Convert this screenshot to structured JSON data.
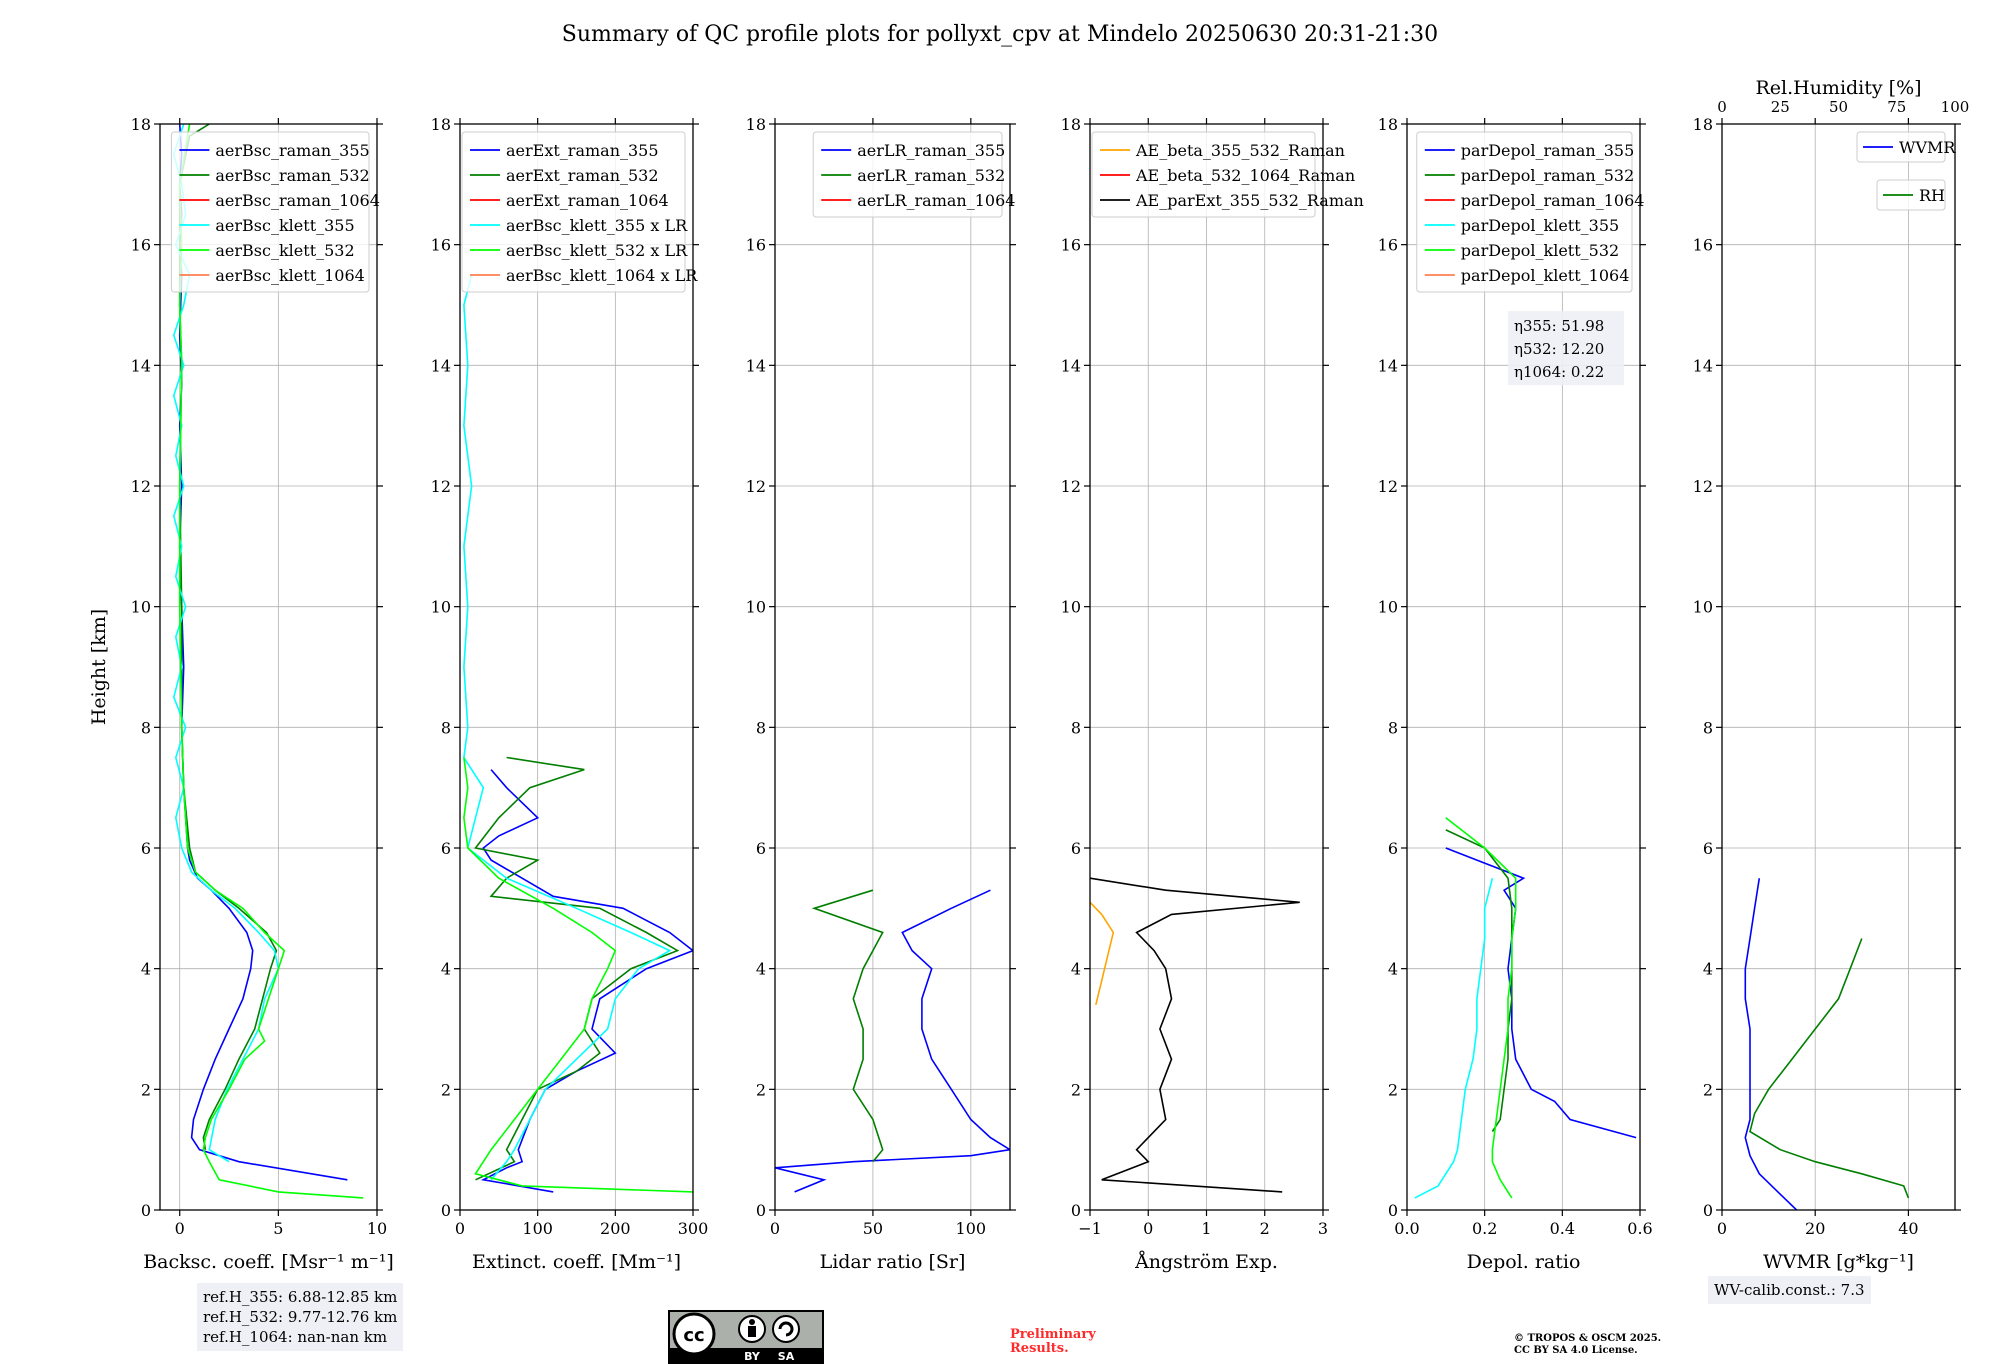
{
  "title": "Summary of QC profile plots for pollyxt_cpv at Mindelo 20250630 20:31-21:30",
  "info": {
    "ref_lines": [
      "ref.H_355: 6.88-12.85 km",
      "ref.H_532: 9.77-12.76 km",
      "ref.H_1064: nan-nan km"
    ],
    "wv_calib": "WV-calib.const.: 7.3",
    "preliminary": [
      "Preliminary",
      "Results."
    ],
    "copyright": [
      "© TROPOS & OSCM 2025.",
      "CC BY SA 4.0 License."
    ],
    "license_badge": [
      "BY",
      "SA"
    ]
  },
  "colors": {
    "blue": "#0000ff",
    "green": "#007f00",
    "red": "#ff0000",
    "cyan": "#00ffff",
    "lime": "#00ff00",
    "salmon": "#ff7f50",
    "orange": "#ffa500",
    "magenta": "#ff00ff",
    "black": "#000000"
  },
  "chart_data": [
    {
      "type": "line",
      "xlabel": "Backsc. coeff. [Msr⁻¹ m⁻¹]",
      "ylabel": "Height [km]",
      "xlim": [
        -1,
        10
      ],
      "ylim": [
        0,
        18
      ],
      "xticks": [
        "0",
        "5",
        "10"
      ],
      "yticks": [
        "0",
        "2",
        "4",
        "6",
        "8",
        "10",
        "12",
        "14",
        "16",
        "18"
      ],
      "grid": true,
      "legend": "top-right",
      "legend_entries": [
        "aerBsc_raman_355",
        "aerBsc_raman_532",
        "aerBsc_raman_1064",
        "aerBsc_klett_355",
        "aerBsc_klett_532",
        "aerBsc_klett_1064"
      ],
      "series": [
        {
          "name": "aerBsc_raman_355",
          "color": "blue",
          "h": [
            0.5,
            0.8,
            1.0,
            1.2,
            1.5,
            2.0,
            2.5,
            3.0,
            3.5,
            4.0,
            4.3,
            4.6,
            5.0,
            5.3,
            5.5,
            5.8,
            6.0,
            7.0,
            8.0,
            9.0,
            10.0,
            11.0,
            12.0,
            13.0,
            13.7,
            14.5,
            15.5,
            16.0,
            16.5,
            17.0,
            17.5,
            18.0
          ],
          "v": [
            8.5,
            3.0,
            1.0,
            0.6,
            0.7,
            1.2,
            1.8,
            2.5,
            3.2,
            3.6,
            3.7,
            3.4,
            2.5,
            1.6,
            0.9,
            0.5,
            0.4,
            0.2,
            0.1,
            0.2,
            0.1,
            0.0,
            0.1,
            0.0,
            0.1,
            0.0,
            0.1,
            0.0,
            0.1,
            0.0,
            0.1,
            0.0
          ]
        },
        {
          "name": "aerBsc_raman_532",
          "color": "green",
          "h": [
            1.0,
            1.2,
            1.5,
            2.0,
            2.5,
            3.0,
            3.5,
            4.0,
            4.3,
            4.6,
            5.0,
            5.3,
            5.6,
            6.0,
            7.0,
            8.0,
            10.0,
            12.0,
            14.0,
            15.0,
            16.0,
            17.0,
            17.8,
            18.0
          ],
          "v": [
            1.3,
            1.2,
            1.5,
            2.3,
            3.0,
            3.8,
            4.2,
            4.6,
            4.9,
            4.4,
            3.0,
            1.8,
            0.8,
            0.5,
            0.2,
            0.1,
            0.1,
            0.0,
            0.1,
            0.0,
            0.0,
            0.0,
            0.5,
            1.5
          ]
        },
        {
          "name": "aerBsc_klett_355",
          "color": "cyan",
          "h": [
            0.8,
            1.0,
            1.5,
            2.0,
            2.5,
            3.0,
            3.5,
            4.0,
            4.3,
            4.6,
            5.0,
            5.3,
            5.6,
            6.0,
            6.5,
            7.0,
            7.5,
            8.0,
            8.5,
            9.0,
            9.5,
            10.0,
            10.5,
            11.0,
            11.5,
            12.0,
            12.5,
            13.0,
            13.5,
            14.0,
            14.5,
            15.0,
            15.5,
            16.0,
            16.5,
            17.0,
            17.5,
            18.0
          ],
          "v": [
            2.5,
            1.5,
            1.8,
            2.4,
            3.2,
            4.0,
            4.3,
            5.0,
            4.8,
            4.0,
            2.8,
            1.6,
            0.6,
            0.1,
            -0.2,
            0.2,
            -0.2,
            0.3,
            -0.3,
            0.1,
            -0.2,
            0.3,
            -0.2,
            0.1,
            -0.3,
            0.2,
            -0.2,
            0.1,
            -0.3,
            0.2,
            -0.3,
            0.2,
            0.5,
            -0.2,
            0.3,
            0.1,
            -0.3,
            0.2
          ]
        },
        {
          "name": "aerBsc_klett_532",
          "color": "lime",
          "h": [
            0.2,
            0.3,
            0.5,
            0.8,
            1.0,
            1.2,
            1.5,
            2.0,
            2.5,
            2.8,
            3.0,
            3.5,
            4.0,
            4.3,
            4.6,
            5.0,
            5.3,
            5.6,
            6.0,
            7.0,
            8.0,
            10.0,
            12.0,
            14.0,
            15.0,
            16.0,
            17.0,
            18.0
          ],
          "v": [
            9.3,
            5.0,
            2.0,
            1.5,
            1.2,
            1.3,
            1.6,
            2.5,
            3.3,
            4.3,
            4.0,
            4.5,
            5.0,
            5.3,
            4.3,
            3.2,
            1.8,
            0.8,
            0.4,
            0.2,
            0.1,
            0.0,
            0.0,
            0.1,
            0.0,
            0.1,
            0.0,
            0.5
          ]
        }
      ]
    },
    {
      "type": "line",
      "xlabel": "Extinct. coeff. [Mm⁻¹]",
      "xlim": [
        0,
        300
      ],
      "ylim": [
        0,
        18
      ],
      "xticks": [
        "0",
        "100",
        "200",
        "300"
      ],
      "yticks": [
        "0",
        "2",
        "4",
        "6",
        "8",
        "10",
        "12",
        "14",
        "16",
        "18"
      ],
      "grid": true,
      "legend": "top-right",
      "legend_entries": [
        "aerExt_raman_355",
        "aerExt_raman_532",
        "aerExt_raman_1064",
        "aerBsc_klett_355 x LR",
        "aerBsc_klett_532 x LR",
        "aerBsc_klett_1064 x LR"
      ],
      "series": [
        {
          "name": "aerExt_raman_355",
          "color": "blue",
          "h": [
            0.3,
            0.5,
            0.7,
            0.8,
            1.0,
            1.5,
            2.0,
            2.3,
            2.6,
            3.0,
            3.5,
            4.0,
            4.3,
            4.6,
            5.0,
            5.2,
            5.5,
            5.8,
            6.0,
            6.2,
            6.5,
            7.0,
            7.3
          ],
          "v": [
            120,
            30,
            60,
            80,
            75,
            90,
            110,
            150,
            200,
            170,
            180,
            240,
            300,
            270,
            210,
            120,
            80,
            40,
            30,
            50,
            100,
            60,
            40
          ]
        },
        {
          "name": "aerExt_raman_532",
          "color": "green",
          "h": [
            0.5,
            0.8,
            1.0,
            1.5,
            2.0,
            2.3,
            2.6,
            3.0,
            3.5,
            4.0,
            4.3,
            4.6,
            5.0,
            5.2,
            5.5,
            5.8,
            6.0,
            6.5,
            7.0,
            7.3,
            7.5
          ],
          "v": [
            20,
            70,
            60,
            80,
            100,
            150,
            180,
            160,
            170,
            220,
            280,
            240,
            180,
            40,
            60,
            100,
            20,
            50,
            90,
            160,
            60
          ]
        },
        {
          "name": "aerBsc_klett_355 x LR",
          "color": "cyan",
          "h": [
            0.5,
            0.8,
            1.0,
            1.5,
            2.0,
            2.5,
            3.0,
            3.5,
            4.0,
            4.3,
            4.6,
            5.0,
            5.5,
            6.0,
            6.5,
            7.0,
            7.5,
            8.0,
            9.0,
            10.0,
            11.0,
            12.0,
            13.0,
            14.0,
            15.0,
            15.5
          ],
          "v": [
            40,
            60,
            70,
            90,
            110,
            150,
            190,
            200,
            230,
            270,
            220,
            150,
            60,
            10,
            20,
            30,
            5,
            10,
            5,
            10,
            5,
            15,
            5,
            10,
            5,
            15
          ]
        },
        {
          "name": "aerBsc_klett_532 x LR",
          "color": "lime",
          "h": [
            0.3,
            0.4,
            0.6,
            1.0,
            1.5,
            2.0,
            2.5,
            3.0,
            3.5,
            4.0,
            4.3,
            4.6,
            5.0,
            5.5,
            6.0,
            6.5,
            7.0,
            7.5
          ],
          "v": [
            300,
            80,
            20,
            40,
            70,
            100,
            130,
            160,
            170,
            190,
            200,
            170,
            120,
            50,
            10,
            5,
            10,
            5
          ]
        }
      ]
    },
    {
      "type": "line",
      "xlabel": "Lidar ratio [Sr]",
      "xlim": [
        0,
        120
      ],
      "ylim": [
        0,
        18
      ],
      "xticks": [
        "0",
        "50",
        "100"
      ],
      "yticks": [
        "0",
        "2",
        "4",
        "6",
        "8",
        "10",
        "12",
        "14",
        "16",
        "18"
      ],
      "grid": true,
      "legend": "top-right",
      "legend_entries": [
        "aerLR_raman_355",
        "aerLR_raman_532",
        "aerLR_raman_1064"
      ],
      "series": [
        {
          "name": "aerLR_raman_355",
          "color": "blue",
          "h": [
            0.3,
            0.5,
            0.7,
            0.8,
            0.9,
            1.0,
            1.2,
            1.5,
            2.0,
            2.5,
            3.0,
            3.5,
            4.0,
            4.3,
            4.6,
            5.0,
            5.3
          ],
          "v": [
            10,
            25,
            0,
            40,
            100,
            120,
            110,
            100,
            90,
            80,
            75,
            75,
            80,
            70,
            65,
            90,
            110
          ]
        },
        {
          "name": "aerLR_raman_532",
          "color": "green",
          "h": [
            0.8,
            1.0,
            1.5,
            2.0,
            2.5,
            3.0,
            3.5,
            4.0,
            4.3,
            4.6,
            5.0,
            5.3
          ],
          "v": [
            50,
            55,
            50,
            40,
            45,
            45,
            40,
            45,
            50,
            55,
            20,
            50
          ]
        }
      ]
    },
    {
      "type": "line",
      "xlabel": "Ångström Exp.",
      "xlim": [
        -1,
        3
      ],
      "ylim": [
        0,
        18
      ],
      "xticks": [
        "−1",
        "0",
        "1",
        "2",
        "3"
      ],
      "yticks": [
        "0",
        "2",
        "4",
        "6",
        "8",
        "10",
        "12",
        "14",
        "16",
        "18"
      ],
      "grid": true,
      "legend": "top-right",
      "legend_entries": [
        "AE_beta_355_532_Raman",
        "AE_beta_532_1064_Raman",
        "AE_parExt_355_532_Raman"
      ],
      "series": [
        {
          "name": "AE_beta_355_532_Raman",
          "color": "orange",
          "h": [
            3.4,
            3.8,
            4.2,
            4.6,
            4.9,
            5.1
          ],
          "v": [
            -0.9,
            -0.8,
            -0.7,
            -0.6,
            -0.8,
            -1.0
          ]
        },
        {
          "name": "AE_parExt_355_532_Raman",
          "color": "black",
          "h": [
            0.3,
            0.5,
            0.8,
            1.0,
            1.5,
            2.0,
            2.5,
            3.0,
            3.5,
            4.0,
            4.3,
            4.6,
            4.9,
            5.1,
            5.3,
            5.5
          ],
          "v": [
            2.3,
            -0.8,
            0.0,
            -0.2,
            0.3,
            0.2,
            0.4,
            0.2,
            0.4,
            0.3,
            0.1,
            -0.2,
            0.4,
            2.6,
            0.3,
            -1.0
          ]
        }
      ]
    },
    {
      "type": "line",
      "xlabel": "Depol. ratio",
      "xlim": [
        0,
        0.6
      ],
      "ylim": [
        0,
        18
      ],
      "xticks": [
        "0.0",
        "0.2",
        "0.4",
        "0.6"
      ],
      "yticks": [
        "0",
        "2",
        "4",
        "6",
        "8",
        "10",
        "12",
        "14",
        "16",
        "18"
      ],
      "grid": true,
      "legend": "top-right",
      "legend_entries": [
        "parDepol_raman_355",
        "parDepol_raman_532",
        "parDepol_raman_1064",
        "parDepol_klett_355",
        "parDepol_klett_532",
        "parDepol_klett_1064"
      ],
      "annotations": [
        "η355: 51.98",
        "η532: 12.20",
        "η1064: 0.22"
      ],
      "series": [
        {
          "name": "parDepol_raman_355",
          "color": "blue",
          "h": [
            1.2,
            1.5,
            1.8,
            2.0,
            2.5,
            3.0,
            3.5,
            4.0,
            4.5,
            5.0,
            5.3,
            5.5,
            5.8,
            6.0
          ],
          "v": [
            0.59,
            0.42,
            0.38,
            0.32,
            0.28,
            0.27,
            0.27,
            0.26,
            0.27,
            0.28,
            0.25,
            0.3,
            0.18,
            0.1
          ]
        },
        {
          "name": "parDepol_raman_532",
          "color": "green",
          "h": [
            1.3,
            1.5,
            2.0,
            2.5,
            3.0,
            3.5,
            4.0,
            4.5,
            5.0,
            5.5,
            6.0,
            6.3
          ],
          "v": [
            0.22,
            0.24,
            0.25,
            0.26,
            0.26,
            0.27,
            0.27,
            0.27,
            0.27,
            0.26,
            0.2,
            0.1
          ]
        },
        {
          "name": "parDepol_klett_355",
          "color": "cyan",
          "h": [
            0.2,
            0.4,
            0.6,
            0.8,
            1.0,
            1.5,
            2.0,
            2.5,
            3.0,
            3.5,
            4.0,
            4.5,
            5.0,
            5.5
          ],
          "v": [
            0.02,
            0.08,
            0.1,
            0.12,
            0.13,
            0.14,
            0.15,
            0.17,
            0.18,
            0.18,
            0.19,
            0.2,
            0.2,
            0.22
          ]
        },
        {
          "name": "parDepol_klett_532",
          "color": "lime",
          "h": [
            0.2,
            0.5,
            0.8,
            1.0,
            1.5,
            2.0,
            2.5,
            3.0,
            3.5,
            4.0,
            4.5,
            5.0,
            5.5,
            6.0,
            6.5
          ],
          "v": [
            0.27,
            0.24,
            0.22,
            0.22,
            0.23,
            0.24,
            0.25,
            0.26,
            0.26,
            0.27,
            0.27,
            0.28,
            0.28,
            0.2,
            0.1
          ]
        }
      ]
    },
    {
      "type": "line",
      "xlabel": "WVMR [g*kg⁻¹]",
      "x2label": "Rel.Humidity [%]",
      "xlim": [
        0,
        50
      ],
      "x2lim": [
        0,
        100
      ],
      "ylim": [
        0,
        18
      ],
      "xticks": [
        "0",
        "20",
        "40"
      ],
      "x2ticks": [
        "0",
        "25",
        "50",
        "75",
        "100"
      ],
      "yticks": [
        "0",
        "2",
        "4",
        "6",
        "8",
        "10",
        "12",
        "14",
        "16",
        "18"
      ],
      "grid": true,
      "legend": "top-right",
      "legend_entries": [
        "WVMR",
        "RH"
      ],
      "series": [
        {
          "name": "WVMR",
          "color": "blue",
          "h": [
            0.0,
            0.3,
            0.6,
            0.9,
            1.2,
            1.5,
            2.0,
            2.5,
            3.0,
            3.5,
            4.0,
            4.5,
            5.0,
            5.5
          ],
          "v": [
            16,
            12,
            8,
            6,
            5,
            6,
            6,
            6,
            6,
            5,
            5,
            6,
            7,
            8
          ]
        },
        {
          "name": "RH",
          "color": "green",
          "h": [
            0.2,
            0.4,
            0.6,
            0.8,
            1.0,
            1.3,
            1.6,
            2.0,
            2.5,
            3.0,
            3.5,
            4.0,
            4.5
          ],
          "v": [
            80,
            78,
            60,
            40,
            25,
            12,
            14,
            20,
            30,
            40,
            50,
            55,
            60
          ]
        }
      ]
    }
  ]
}
